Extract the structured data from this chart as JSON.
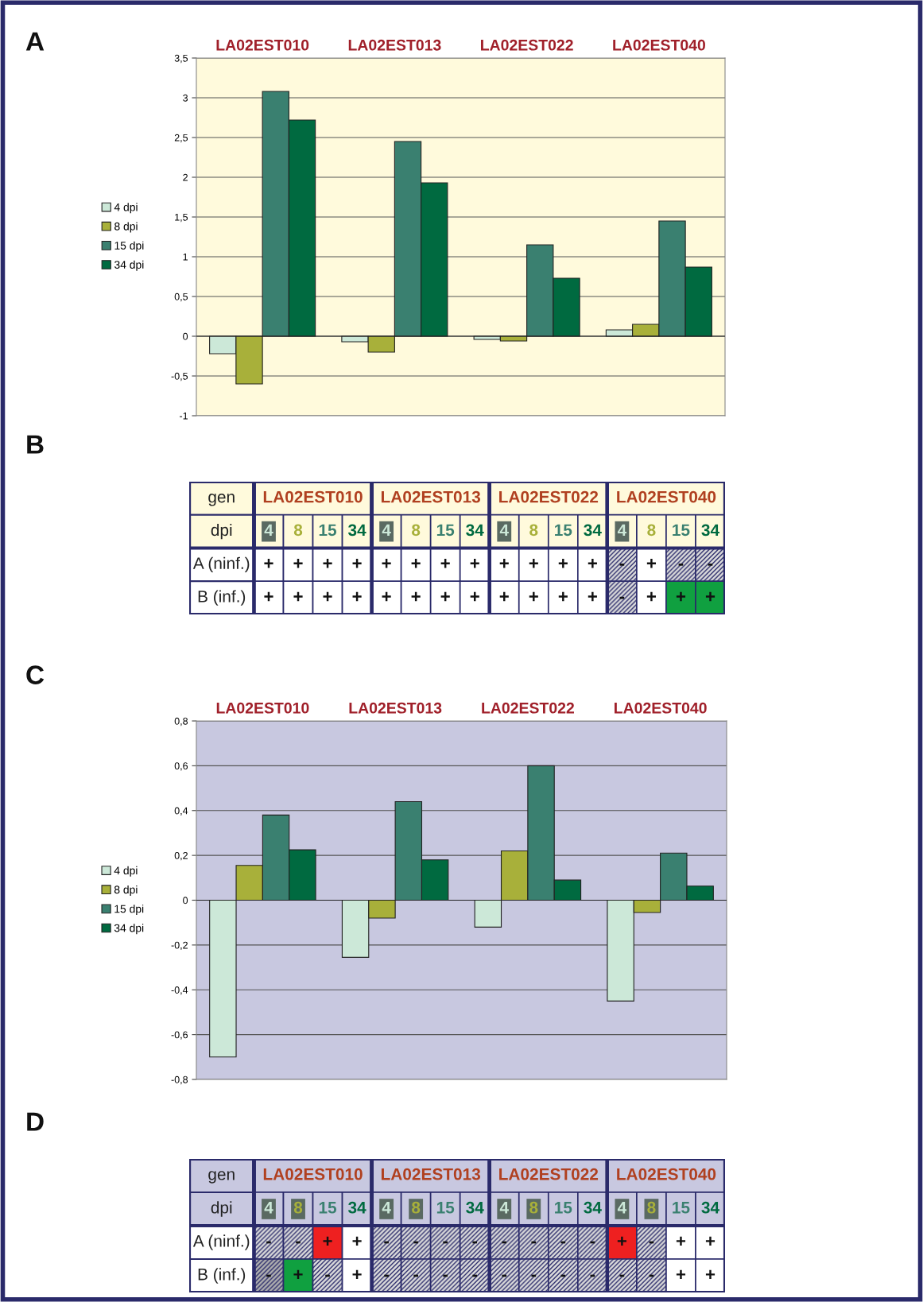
{
  "chart_data": [
    {
      "type": "bar",
      "title": "A",
      "categories": [
        "LA02EST010",
        "LA02EST013",
        "LA02EST022",
        "LA02EST040"
      ],
      "series": [
        {
          "name": "4 dpi",
          "color": "#cce8d8",
          "values": [
            -0.22,
            -0.07,
            -0.04,
            0.08
          ]
        },
        {
          "name": "8 dpi",
          "color": "#a8b03a",
          "values": [
            -0.6,
            -0.2,
            -0.06,
            0.15
          ]
        },
        {
          "name": "15 dpi",
          "color": "#3a8070",
          "values": [
            3.08,
            2.45,
            1.15,
            1.45
          ]
        },
        {
          "name": "34 dpi",
          "color": "#006a40",
          "values": [
            2.72,
            1.93,
            0.73,
            0.87
          ]
        }
      ],
      "ylim": [
        -1,
        3.5
      ],
      "yticks": [
        {
          "value": -1,
          "label": "-1"
        },
        {
          "value": -0.5,
          "label": "-0,5"
        },
        0,
        {
          "value": 0.5,
          "label": "0,5"
        },
        1,
        {
          "value": 1.5,
          "label": "1,5"
        },
        2,
        {
          "value": 2.5,
          "label": "2,5"
        },
        3,
        {
          "value": 3.5,
          "label": "3,5"
        }
      ],
      "grid": "y",
      "legend": "left"
    },
    {
      "type": "other",
      "title": "B",
      "categories": [
        "LA02EST010",
        "LA02EST013",
        "LA02EST022",
        "LA02EST040"
      ],
      "y_categories": [
        "gen",
        "dpi",
        "A (ninf.)",
        "B (inf.)"
      ],
      "cell_labels": [
        [
          "4",
          "8",
          "15",
          "34",
          "4",
          "8",
          "15",
          "34",
          "4",
          "8",
          "15",
          "34",
          "4",
          "8",
          "15",
          "34"
        ],
        [
          "+",
          "+",
          "+",
          "+",
          "+",
          "+",
          "+",
          "+",
          "+",
          "+",
          "+",
          "+",
          "-",
          "+",
          "-",
          "-"
        ],
        [
          "+",
          "+",
          "+",
          "+",
          "+",
          "+",
          "+",
          "+",
          "+",
          "+",
          "+",
          "+",
          "-",
          "+",
          "+",
          "+"
        ]
      ],
      "colors": [
        [
          "#cce8d8",
          "#a8b03a",
          "#3a8070",
          "#006a40",
          "#cce8d8",
          "#a8b03a",
          "#3a8070",
          "#006a40",
          "#cce8d8",
          "#a8b03a",
          "#3a8070",
          "#006a40",
          "#cce8d8",
          "#a8b03a",
          "#3a8070",
          "#006a40"
        ],
        [
          null,
          null,
          null,
          null,
          null,
          null,
          null,
          null,
          null,
          null,
          null,
          null,
          "#dcdcdc",
          null,
          "#dcdcdc",
          "#dcdcdc"
        ],
        [
          null,
          null,
          null,
          null,
          null,
          null,
          null,
          null,
          null,
          null,
          null,
          null,
          "#dcdcdc",
          null,
          "#10a040",
          "#10a040"
        ]
      ]
    },
    {
      "type": "bar",
      "title": "C",
      "categories": [
        "LA02EST010",
        "LA02EST013",
        "LA02EST022",
        "LA02EST040"
      ],
      "series": [
        {
          "name": "4 dpi",
          "color": "#cce8d8",
          "values": [
            -0.7,
            -0.255,
            -0.12,
            -0.45
          ]
        },
        {
          "name": "8 dpi",
          "color": "#a8b03a",
          "values": [
            0.155,
            -0.08,
            0.22,
            -0.055
          ]
        },
        {
          "name": "15 dpi",
          "color": "#3a8070",
          "values": [
            0.38,
            0.44,
            0.6,
            0.21
          ]
        },
        {
          "name": "34 dpi",
          "color": "#006a40",
          "values": [
            0.225,
            0.18,
            0.09,
            0.063
          ]
        }
      ],
      "ylim": [
        -0.8,
        0.8
      ],
      "yticks": [
        {
          "value": -0.8,
          "label": "-0,8"
        },
        {
          "value": -0.6,
          "label": "-0,6"
        },
        {
          "value": -0.4,
          "label": "-0,4"
        },
        {
          "value": -0.2,
          "label": "-0,2"
        },
        0,
        {
          "value": 0.2,
          "label": "0,2"
        },
        {
          "value": 0.4,
          "label": "0,4"
        },
        {
          "value": 0.6,
          "label": "0,6"
        },
        {
          "value": 0.8,
          "label": "0,8"
        }
      ],
      "grid": "y",
      "legend": "left"
    },
    {
      "type": "other",
      "title": "D",
      "categories": [
        "LA02EST010",
        "LA02EST013",
        "LA02EST022",
        "LA02EST040"
      ],
      "y_categories": [
        "gen",
        "dpi",
        "A (ninf.)",
        "B (inf.)"
      ],
      "cell_labels": [
        [
          "4",
          "8",
          "15",
          "34",
          "4",
          "8",
          "15",
          "34",
          "4",
          "8",
          "15",
          "34",
          "4",
          "8",
          "15",
          "34"
        ],
        [
          "-",
          "-",
          "+",
          "+",
          "-",
          "-",
          "-",
          "-",
          "-",
          "-",
          "-",
          "-",
          "+",
          "-",
          "+",
          "+"
        ],
        [
          "-",
          "+",
          "-",
          "+",
          "-",
          "-",
          "-",
          "-",
          "-",
          "-",
          "-",
          "-",
          "-",
          "-",
          "+",
          "+"
        ]
      ],
      "colors": [
        [
          "#cce8d8",
          "#a8b03a",
          "#3a8070",
          "#006a40",
          "#cce8d8",
          "#a8b03a",
          "#3a8070",
          "#006a40",
          "#cce8d8",
          "#a8b03a",
          "#3a8070",
          "#006a40",
          "#cce8d8",
          "#a8b03a",
          "#3a8070",
          "#006a40"
        ],
        [
          "#dcdcdc",
          "#dcdcdc",
          "#ee2020",
          null,
          "#dcdcdc",
          "#dcdcdc",
          "#dcdcdc",
          "#dcdcdc",
          "#dcdcdc",
          "#dcdcdc",
          "#dcdcdc",
          "#dcdcdc",
          "#ee2020",
          "#dcdcdc",
          null,
          null
        ],
        [
          "#b0b0b0",
          "#10a040",
          "#dcdcdc",
          null,
          "#dcdcdc",
          "#dcdcdc",
          "#dcdcdc",
          "#dcdcdc",
          "#dcdcdc",
          "#dcdcdc",
          "#dcdcdc",
          "#dcdcdc",
          "#dcdcdc",
          "#dcdcdc",
          null,
          null
        ]
      ]
    }
  ]
}
